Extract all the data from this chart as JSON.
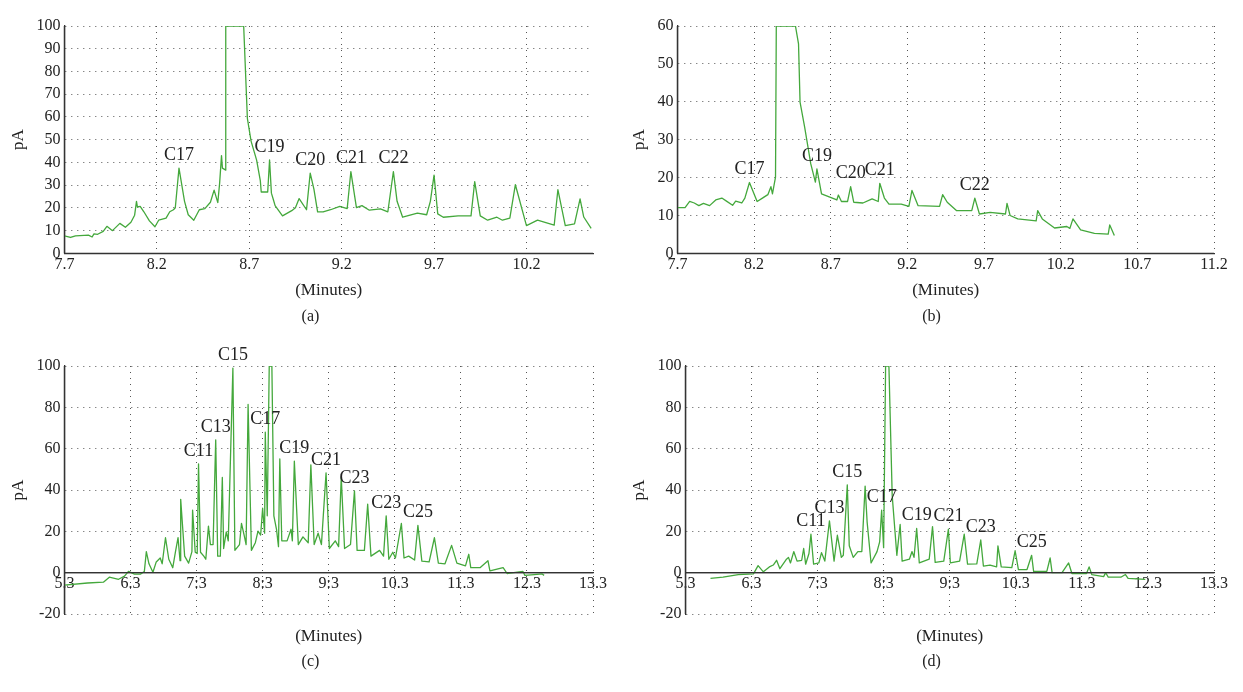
{
  "chart_data": [
    {
      "type": "line",
      "xlabel": "(Minutes)",
      "ylabel": "pA",
      "grid": true,
      "marker": "none",
      "xlim": [
        7.7,
        10.56
      ],
      "xticks": [
        7.7,
        8.2,
        8.7,
        9.2,
        9.7,
        10.2
      ],
      "ylim": [
        0,
        100
      ],
      "yticks": [
        0,
        10,
        20,
        30,
        40,
        50,
        60,
        70,
        80,
        90,
        100
      ],
      "series": [
        {
          "color": "#44a83c",
          "x": [
            7.7,
            7.733,
            7.76,
            7.83,
            7.85,
            7.86,
            7.88,
            7.91,
            7.93,
            7.96,
            8.0,
            8.03,
            8.06,
            8.08,
            8.09,
            8.095,
            8.11,
            8.13,
            8.16,
            8.19,
            8.21,
            8.25,
            8.27,
            8.29,
            8.3,
            8.32,
            8.35,
            8.37,
            8.4,
            8.43,
            8.46,
            8.49,
            8.51,
            8.53,
            8.54,
            8.55,
            8.555,
            8.573,
            8.573,
            8.67,
            8.69,
            8.71,
            8.74,
            8.76,
            8.765,
            8.8,
            8.81,
            8.82,
            8.83,
            8.84,
            8.88,
            8.93,
            8.95,
            8.97,
            9.01,
            9.03,
            9.05,
            9.07,
            9.1,
            9.14,
            9.19,
            9.23,
            9.25,
            9.28,
            9.31,
            9.35,
            9.41,
            9.45,
            9.48,
            9.5,
            9.53,
            9.58,
            9.61,
            9.66,
            9.68,
            9.7,
            9.72,
            9.75,
            9.83,
            9.9,
            9.92,
            9.95,
            9.99,
            10.04,
            10.07,
            10.11,
            10.14,
            10.2,
            10.26,
            10.35,
            10.37,
            10.41,
            10.46,
            10.49,
            10.51,
            10.55
          ],
          "values": [
            7.7,
            7.0,
            7.7,
            8,
            7.2,
            8.6,
            8.4,
            9.7,
            11.9,
            10,
            13.2,
            11.5,
            13.7,
            16.8,
            22.9,
            20.5,
            20.7,
            18.3,
            14.3,
            11.7,
            14.6,
            15.5,
            18.3,
            19.2,
            20.1,
            37.5,
            22.9,
            17,
            14.6,
            19.2,
            19.7,
            22.5,
            27.8,
            22.3,
            31,
            43,
            37.5,
            36.6,
            100,
            100,
            59.4,
            49.4,
            41,
            32,
            27,
            27,
            41.1,
            26.5,
            23.8,
            21,
            16.5,
            18.8,
            20.1,
            24.1,
            19.2,
            35.3,
            28.3,
            18.3,
            18.3,
            19.2,
            20.7,
            19.7,
            36,
            20.1,
            21,
            19,
            19.6,
            18.3,
            36,
            22.9,
            15.9,
            17,
            17.7,
            17,
            22.9,
            34.4,
            17.4,
            15.9,
            16.5,
            16.5,
            31.6,
            16.5,
            14.6,
            15.9,
            14.6,
            15.5,
            30.2,
            12.2,
            14.6,
            12.4,
            28,
            12.2,
            13,
            24,
            16,
            11
          ]
        }
      ],
      "annotations": [
        {
          "text": "C17",
          "x": 8.32,
          "y": 37.5
        },
        {
          "text": "C19",
          "x": 8.81,
          "y": 41.1
        },
        {
          "text": "C20",
          "x": 9.03,
          "y": 35.3
        },
        {
          "text": "C21",
          "x": 9.25,
          "y": 36
        },
        {
          "text": "C22",
          "x": 9.48,
          "y": 36
        },
        "(a)"
      ]
    },
    {
      "type": "line",
      "xlabel": "(Minutes)",
      "ylabel": "pA",
      "grid": true,
      "marker": "none",
      "xlim": [
        7.7,
        11.2
      ],
      "xticks": [
        7.7,
        8.2,
        8.7,
        9.2,
        9.7,
        10.2,
        10.7,
        11.2
      ],
      "ylim": [
        0,
        60
      ],
      "yticks": [
        0,
        10,
        20,
        30,
        40,
        50,
        60
      ],
      "series": [
        {
          "color": "#44a83c",
          "x": [
            7.7,
            7.75,
            7.78,
            7.81,
            7.84,
            7.87,
            7.91,
            7.95,
            7.99,
            8.02,
            8.06,
            8.08,
            8.12,
            8.14,
            8.17,
            8.22,
            8.29,
            8.31,
            8.32,
            8.34,
            8.345,
            8.47,
            8.49,
            8.5,
            8.53,
            8.57,
            8.6,
            8.61,
            8.64,
            8.74,
            8.75,
            8.77,
            8.81,
            8.83,
            8.85,
            8.91,
            8.97,
            9.01,
            9.02,
            9.05,
            9.08,
            9.16,
            9.21,
            9.23,
            9.27,
            9.41,
            9.43,
            9.46,
            9.52,
            9.62,
            9.64,
            9.67,
            9.74,
            9.84,
            9.85,
            9.87,
            9.92,
            10.04,
            10.05,
            10.08,
            10.16,
            10.24,
            10.26,
            10.28,
            10.33,
            10.42,
            10.51,
            10.52,
            10.55
          ],
          "values": [
            12.1,
            12.1,
            13.7,
            13.3,
            12.6,
            13.2,
            12.6,
            14.1,
            14.6,
            13.8,
            12.7,
            13.8,
            13.3,
            14.6,
            18.7,
            13.7,
            15.5,
            17.6,
            15.7,
            20.1,
            60,
            60,
            55.3,
            39.9,
            33.3,
            23.6,
            18.8,
            22.3,
            15.7,
            14.1,
            15.4,
            13.7,
            13.7,
            17.6,
            13.5,
            13.3,
            14.4,
            13.7,
            18.5,
            14.6,
            13,
            13,
            12.4,
            16.6,
            12.6,
            12.4,
            15.5,
            13.5,
            11.3,
            11.3,
            14.6,
            10.4,
            10.8,
            10.4,
            13.2,
            10,
            9.1,
            8.6,
            11.3,
            9.1,
            6.7,
            7.1,
            6.6,
            9.1,
            6.2,
            5.3,
            5.1,
            7.5,
            4.7
          ]
        }
      ],
      "annotations": [
        {
          "text": "C17",
          "x": 8.17,
          "y": 18.7
        },
        {
          "text": "C19",
          "x": 8.61,
          "y": 22.3
        },
        {
          "text": "C20",
          "x": 8.83,
          "y": 17.6
        },
        {
          "text": "C21",
          "x": 9.02,
          "y": 18.5
        },
        {
          "text": "C22",
          "x": 9.64,
          "y": 14.6
        },
        "(b)"
      ]
    },
    {
      "type": "line",
      "xlabel": "(Minutes)",
      "ylabel": "pA",
      "grid": true,
      "marker": "none",
      "xlim": [
        5.3,
        13.3
      ],
      "xticks": [
        5.3,
        6.3,
        {
          "value": 7.3,
          "label": "7:3"
        },
        {
          "value": 8.3,
          "label": "8:3"
        },
        {
          "value": 9.3,
          "label": "9:3"
        },
        10.3,
        11.3,
        12.3,
        13.3
      ],
      "ylim": [
        -20,
        100
      ],
      "yticks": [
        -20,
        0,
        20,
        40,
        60,
        80,
        100
      ],
      "series": [
        {
          "color": "#44a83c",
          "x": [
            5.3,
            5.65,
            5.89,
            5.98,
            6.12,
            6.21,
            6.27,
            6.36,
            6.45,
            6.51,
            6.54,
            6.58,
            6.64,
            6.69,
            6.75,
            6.78,
            6.83,
            6.88,
            6.94,
            6.98,
            7.02,
            7.05,
            7.06,
            7.12,
            7.18,
            7.23,
            7.24,
            7.28,
            7.31,
            7.33,
            7.36,
            7.41,
            7.44,
            7.48,
            7.51,
            7.55,
            7.59,
            7.62,
            7.66,
            7.69,
            7.71,
            7.75,
            7.78,
            7.85,
            7.88,
            7.95,
            7.98,
            8.02,
            8.05,
            8.08,
            8.13,
            8.19,
            8.23,
            8.27,
            8.3,
            8.33,
            8.34,
            8.37,
            8.4,
            8.44,
            8.47,
            8.51,
            8.54,
            8.56,
            8.59,
            8.67,
            8.73,
            8.75,
            8.78,
            8.84,
            8.91,
            8.99,
            9.03,
            9.08,
            9.14,
            9.19,
            9.26,
            9.31,
            9.4,
            9.45,
            9.49,
            9.54,
            9.63,
            9.69,
            9.73,
            9.84,
            9.89,
            9.94,
            10.07,
            10.13,
            10.17,
            10.21,
            10.27,
            10.31,
            10.4,
            10.44,
            10.51,
            10.6,
            10.65,
            10.71,
            10.82,
            10.9,
            10.96,
            11.06,
            11.16,
            11.24,
            11.37,
            11.42,
            11.45,
            11.59,
            11.71,
            11.74,
            11.94,
            12.0,
            12.24,
            12.27,
            12.41,
            12.53,
            12.56
          ],
          "values": [
            -6,
            -5,
            -4.6,
            -2.2,
            -3.2,
            -1.7,
            0.6,
            -0.7,
            -0.7,
            0.6,
            10.2,
            4.3,
            0.2,
            5.2,
            7.1,
            4.3,
            16.9,
            6.5,
            2.4,
            9.9,
            16.9,
            5.8,
            35.5,
            8,
            4.6,
            10.2,
            30.3,
            9.9,
            9.3,
            52.6,
            9.9,
            8,
            6.5,
            22.5,
            13.6,
            13.6,
            64.3,
            8,
            8,
            46.1,
            11.7,
            19.7,
            15.4,
            99,
            10.8,
            13.6,
            23.8,
            18.2,
            13.6,
            81.4,
            10.8,
            14.5,
            20.1,
            18.2,
            31.2,
            19.1,
            68,
            27.5,
            100,
            100,
            27.5,
            21,
            12.6,
            55,
            15.4,
            15.4,
            21,
            15.4,
            53.9,
            13.6,
            17.3,
            14.5,
            52.2,
            13.6,
            19.1,
            13.6,
            48.3,
            11.7,
            15.4,
            12.6,
            46.1,
            11.7,
            13.6,
            39.6,
            10.8,
            10.8,
            33.1,
            8,
            10.8,
            8,
            27.5,
            6.5,
            9.9,
            7.1,
            23.8,
            7.1,
            8,
            6.1,
            22.9,
            5.6,
            5.2,
            16.9,
            4.6,
            4.3,
            13.2,
            4.6,
            3.3,
            8.9,
            2.4,
            2.4,
            5.8,
            0.9,
            2.4,
            -0.4,
            0.6,
            -1.3,
            -0.9,
            -0.6,
            -1.3
          ]
        }
      ],
      "annotations": [
        {
          "text": "C11",
          "x": 7.33,
          "y": 52.6
        },
        {
          "text": "C13",
          "x": 7.59,
          "y": 64.3
        },
        {
          "text": "C15",
          "x": 7.85,
          "y": 99
        },
        {
          "text": "C17",
          "x": 8.34,
          "y": 68
        },
        {
          "text": "C19",
          "x": 8.78,
          "y": 53.9
        },
        {
          "text": "C21",
          "x": 9.26,
          "y": 48.3
        },
        {
          "text": "C23",
          "x": 9.69,
          "y": 39.6
        },
        {
          "text": "C23",
          "x": 10.17,
          "y": 27.5
        },
        {
          "text": "C25",
          "x": 10.65,
          "y": 22.9
        },
        "(c)"
      ]
    },
    {
      "type": "line",
      "xlabel": "(Minutes)",
      "ylabel": "pA",
      "grid": true,
      "marker": "none",
      "xlim": [
        5.3,
        13.3
      ],
      "xticks": [
        5.3,
        6.3,
        {
          "value": 7.3,
          "label": "7:3"
        },
        {
          "value": 8.3,
          "label": "8:3"
        },
        {
          "value": 9.3,
          "label": "9:3"
        },
        10.3,
        11.3,
        12.3,
        13.3
      ],
      "ylim": [
        -20,
        100
      ],
      "yticks": [
        -20,
        0,
        20,
        40,
        60,
        80,
        100
      ],
      "series": [
        {
          "color": "#44a83c",
          "x": [
            5.68,
            5.87,
            6.1,
            6.33,
            6.4,
            6.48,
            6.57,
            6.63,
            6.68,
            6.73,
            6.83,
            6.86,
            6.89,
            6.94,
            6.99,
            7.06,
            7.09,
            7.12,
            7.17,
            7.2,
            7.24,
            7.32,
            7.36,
            7.41,
            7.48,
            7.55,
            7.6,
            7.66,
            7.69,
            7.75,
            7.78,
            7.84,
            7.91,
            7.97,
            8.02,
            8.05,
            8.11,
            8.2,
            8.24,
            8.27,
            8.3,
            8.33,
            8.38,
            8.43,
            8.5,
            8.55,
            8.58,
            8.69,
            8.73,
            8.76,
            8.8,
            8.84,
            8.99,
            9.04,
            9.08,
            9.21,
            9.28,
            9.31,
            9.45,
            9.52,
            9.57,
            9.71,
            9.77,
            9.81,
            9.91,
            10.01,
            10.03,
            10.08,
            10.24,
            10.29,
            10.34,
            10.47,
            10.54,
            10.57,
            10.77,
            10.82,
            10.85,
            11.0,
            11.1,
            11.15,
            11.37,
            11.41,
            11.45,
            11.63,
            11.66,
            11.7,
            11.89,
            11.96,
            12.0,
            12.26
          ],
          "values": [
            -2.8,
            -2.2,
            -0.9,
            -0.6,
            3.4,
            0.4,
            2.8,
            3.7,
            6,
            1.9,
            6.5,
            7.4,
            4.7,
            10.2,
            5.6,
            6,
            11.7,
            4.1,
            9.3,
            18.6,
            4.1,
            4.7,
            9.7,
            5.6,
            25.1,
            5.6,
            18.1,
            7.4,
            8.4,
            42.5,
            13,
            7.4,
            10.2,
            10.2,
            41.9,
            24.6,
            4.7,
            10.2,
            14.9,
            30.2,
            12.1,
            100,
            100,
            37.2,
            8.4,
            23.3,
            5.6,
            6.5,
            10.2,
            7.4,
            21.4,
            4.7,
            6.5,
            22.3,
            5,
            5.6,
            21,
            4.7,
            5.6,
            18.6,
            4.1,
            4.3,
            15.8,
            3.2,
            3.7,
            2.8,
            13,
            2.8,
            2.4,
            10.6,
            1.5,
            1.5,
            8.4,
            0.6,
            0.6,
            7.1,
            0,
            0,
            4.7,
            -0.4,
            -0.4,
            2.8,
            -0.9,
            -1.9,
            0,
            -2.2,
            -2.2,
            -0.9,
            -2.8,
            -3.2
          ]
        }
      ],
      "annotations": [
        {
          "text": "C11",
          "x": 7.2,
          "y": 18.6
        },
        {
          "text": "C13",
          "x": 7.48,
          "y": 25.1
        },
        {
          "text": "C15",
          "x": 7.75,
          "y": 42.5
        },
        {
          "text": "C17",
          "x": 8.27,
          "y": 30.2
        },
        {
          "text": "C19",
          "x": 8.8,
          "y": 21.4
        },
        {
          "text": "C21",
          "x": 9.28,
          "y": 21
        },
        {
          "text": "C23",
          "x": 9.77,
          "y": 15.8
        },
        {
          "text": "C25",
          "x": 10.54,
          "y": 8.4
        },
        "(d)"
      ]
    }
  ]
}
